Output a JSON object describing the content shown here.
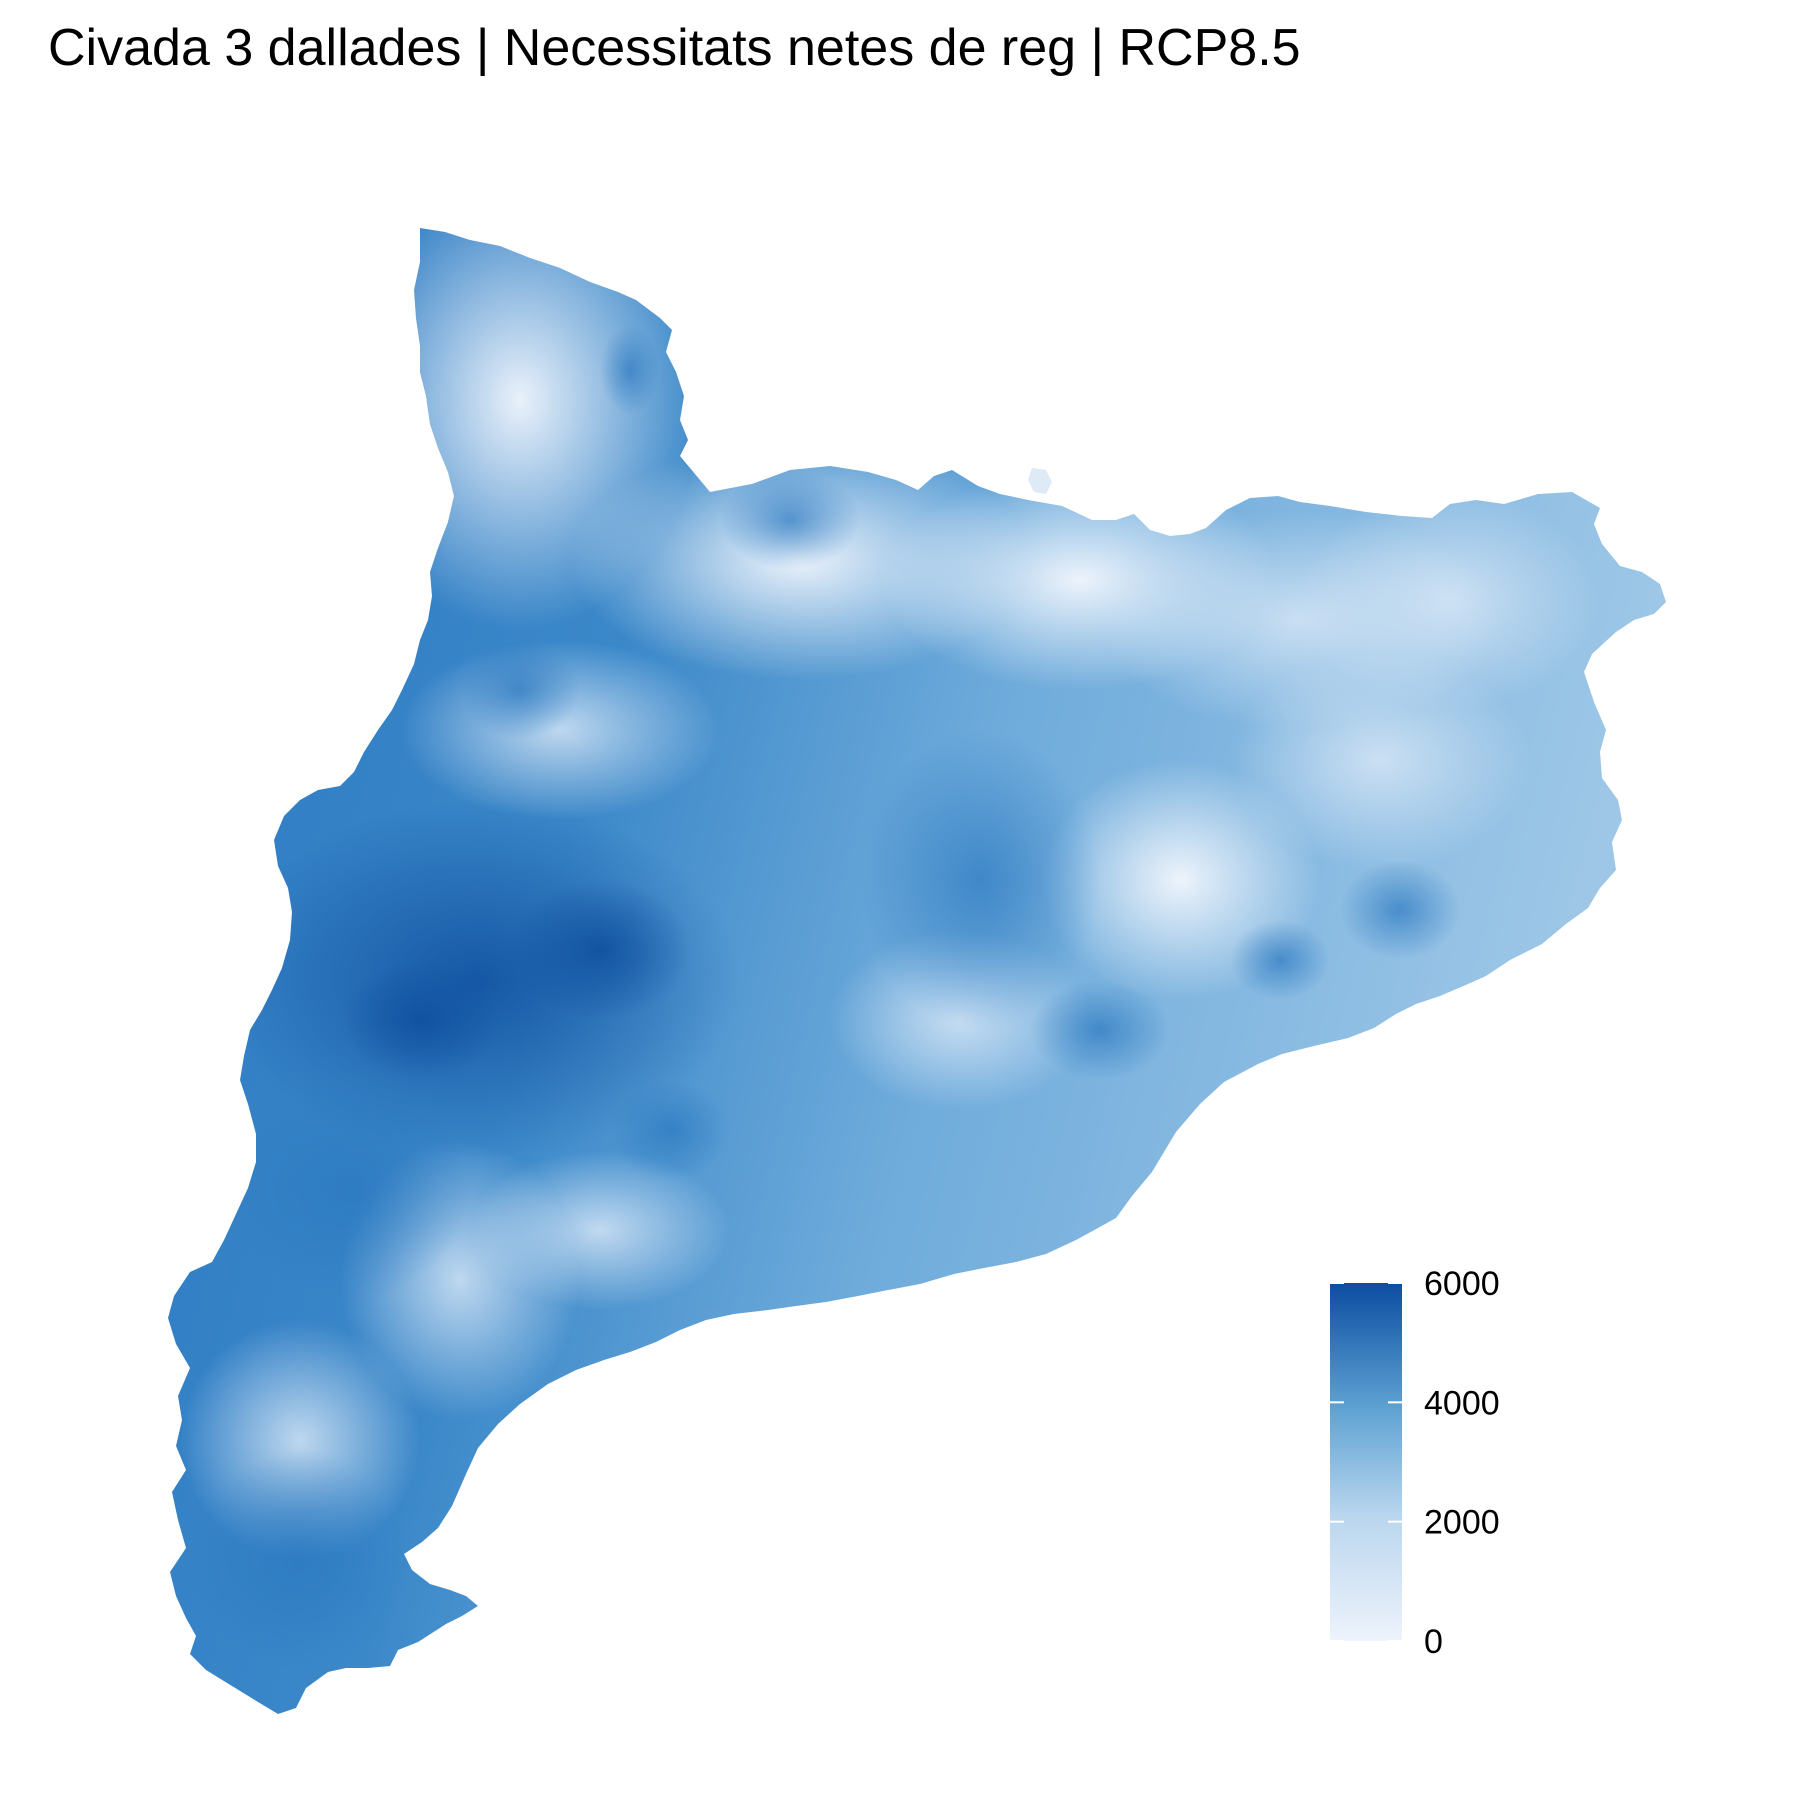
{
  "title": "Civada 3 dallades | Necessitats netes de reg | RCP8.5",
  "map": {
    "region": "Catalunya",
    "variable": "Necessitats netes de reg",
    "crop": "Civada 3 dallades",
    "scenario": "RCP8.5"
  },
  "legend": {
    "type": "continuous",
    "min": 0,
    "max": 6000,
    "ticks": [
      {
        "value": 0,
        "label": "0"
      },
      {
        "value": 2000,
        "label": "2000"
      },
      {
        "value": 4000,
        "label": "4000"
      },
      {
        "value": 6000,
        "label": "6000"
      }
    ],
    "color_low": "#eef3fc",
    "color_mid": "#6aaed6",
    "color_high": "#08479c"
  },
  "colors": {
    "background": "#ffffff",
    "text": "#000000"
  }
}
